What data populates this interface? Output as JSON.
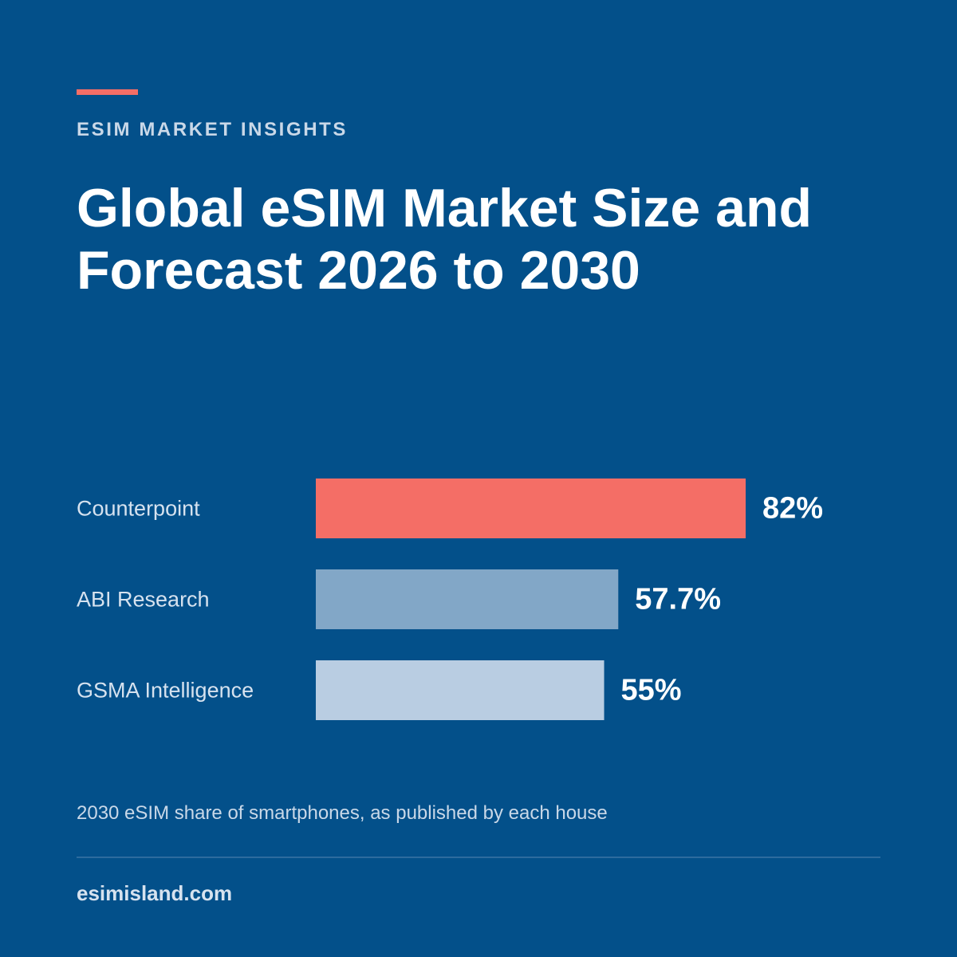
{
  "header": {
    "eyebrow": "ESIM MARKET INSIGHTS",
    "title": "Global eSIM Market Size and Forecast 2026 to 2030"
  },
  "colors": {
    "background": "#03508a",
    "accent": "#f46e66",
    "bar_mid": "#82a7c7",
    "bar_light": "#b9cde2"
  },
  "chart_data": {
    "type": "bar",
    "orientation": "horizontal",
    "categories": [
      "Counterpoint",
      "ABI Research",
      "GSMA Intelligence"
    ],
    "values": [
      82,
      57.7,
      55
    ],
    "value_labels": [
      "82%",
      "57.7%",
      "55%"
    ],
    "bar_colors": [
      "#f46e66",
      "#82a7c7",
      "#b9cde2"
    ],
    "title": "",
    "xlabel": "",
    "ylabel": "",
    "grid": false
  },
  "footer": {
    "caption": "2030 eSIM share of smartphones, as published by each house",
    "site": "esimisland.com"
  }
}
